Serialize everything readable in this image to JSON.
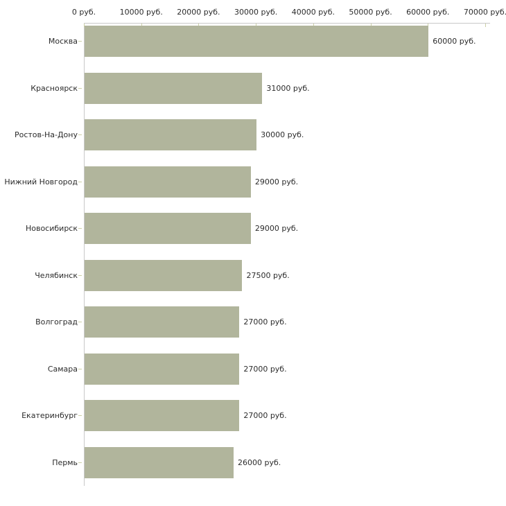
{
  "chart_data": {
    "type": "bar",
    "orientation": "horizontal",
    "title": "",
    "xlabel": "",
    "ylabel": "",
    "categories": [
      "Москва",
      "Красноярск",
      "Ростов-На-Дону",
      "Нижний Новгород",
      "Новосибирск",
      "Челябинск",
      "Волгоград",
      "Самара",
      "Екатеринбург",
      "Пермь"
    ],
    "values": [
      60000,
      31000,
      30000,
      29000,
      29000,
      27500,
      27000,
      27000,
      27000,
      26000
    ],
    "value_labels": [
      "60000 руб.",
      "31000 руб.",
      "30000 руб.",
      "29000 руб.",
      "29000 руб.",
      "27500 руб.",
      "27000 руб.",
      "27000 руб.",
      "27000 руб.",
      "26000 руб."
    ],
    "x_ticks": [
      {
        "value": 0,
        "label": "0 руб."
      },
      {
        "value": 10000,
        "label": "10000 руб."
      },
      {
        "value": 20000,
        "label": "20000 руб."
      },
      {
        "value": 30000,
        "label": "30000 руб."
      },
      {
        "value": 40000,
        "label": "40000 руб."
      },
      {
        "value": 50000,
        "label": "50000 руб."
      },
      {
        "value": 60000,
        "label": "60000 руб."
      },
      {
        "value": 70000,
        "label": "70000 руб."
      }
    ],
    "xlim": [
      0,
      70000
    ],
    "grid": false,
    "legend": "none",
    "colors": {
      "bar": "#b1b59c",
      "tick": "#ccd0a6",
      "axis_line": "#c8c8c8",
      "text": "#2b2b2b",
      "background": "#ffffff"
    }
  }
}
